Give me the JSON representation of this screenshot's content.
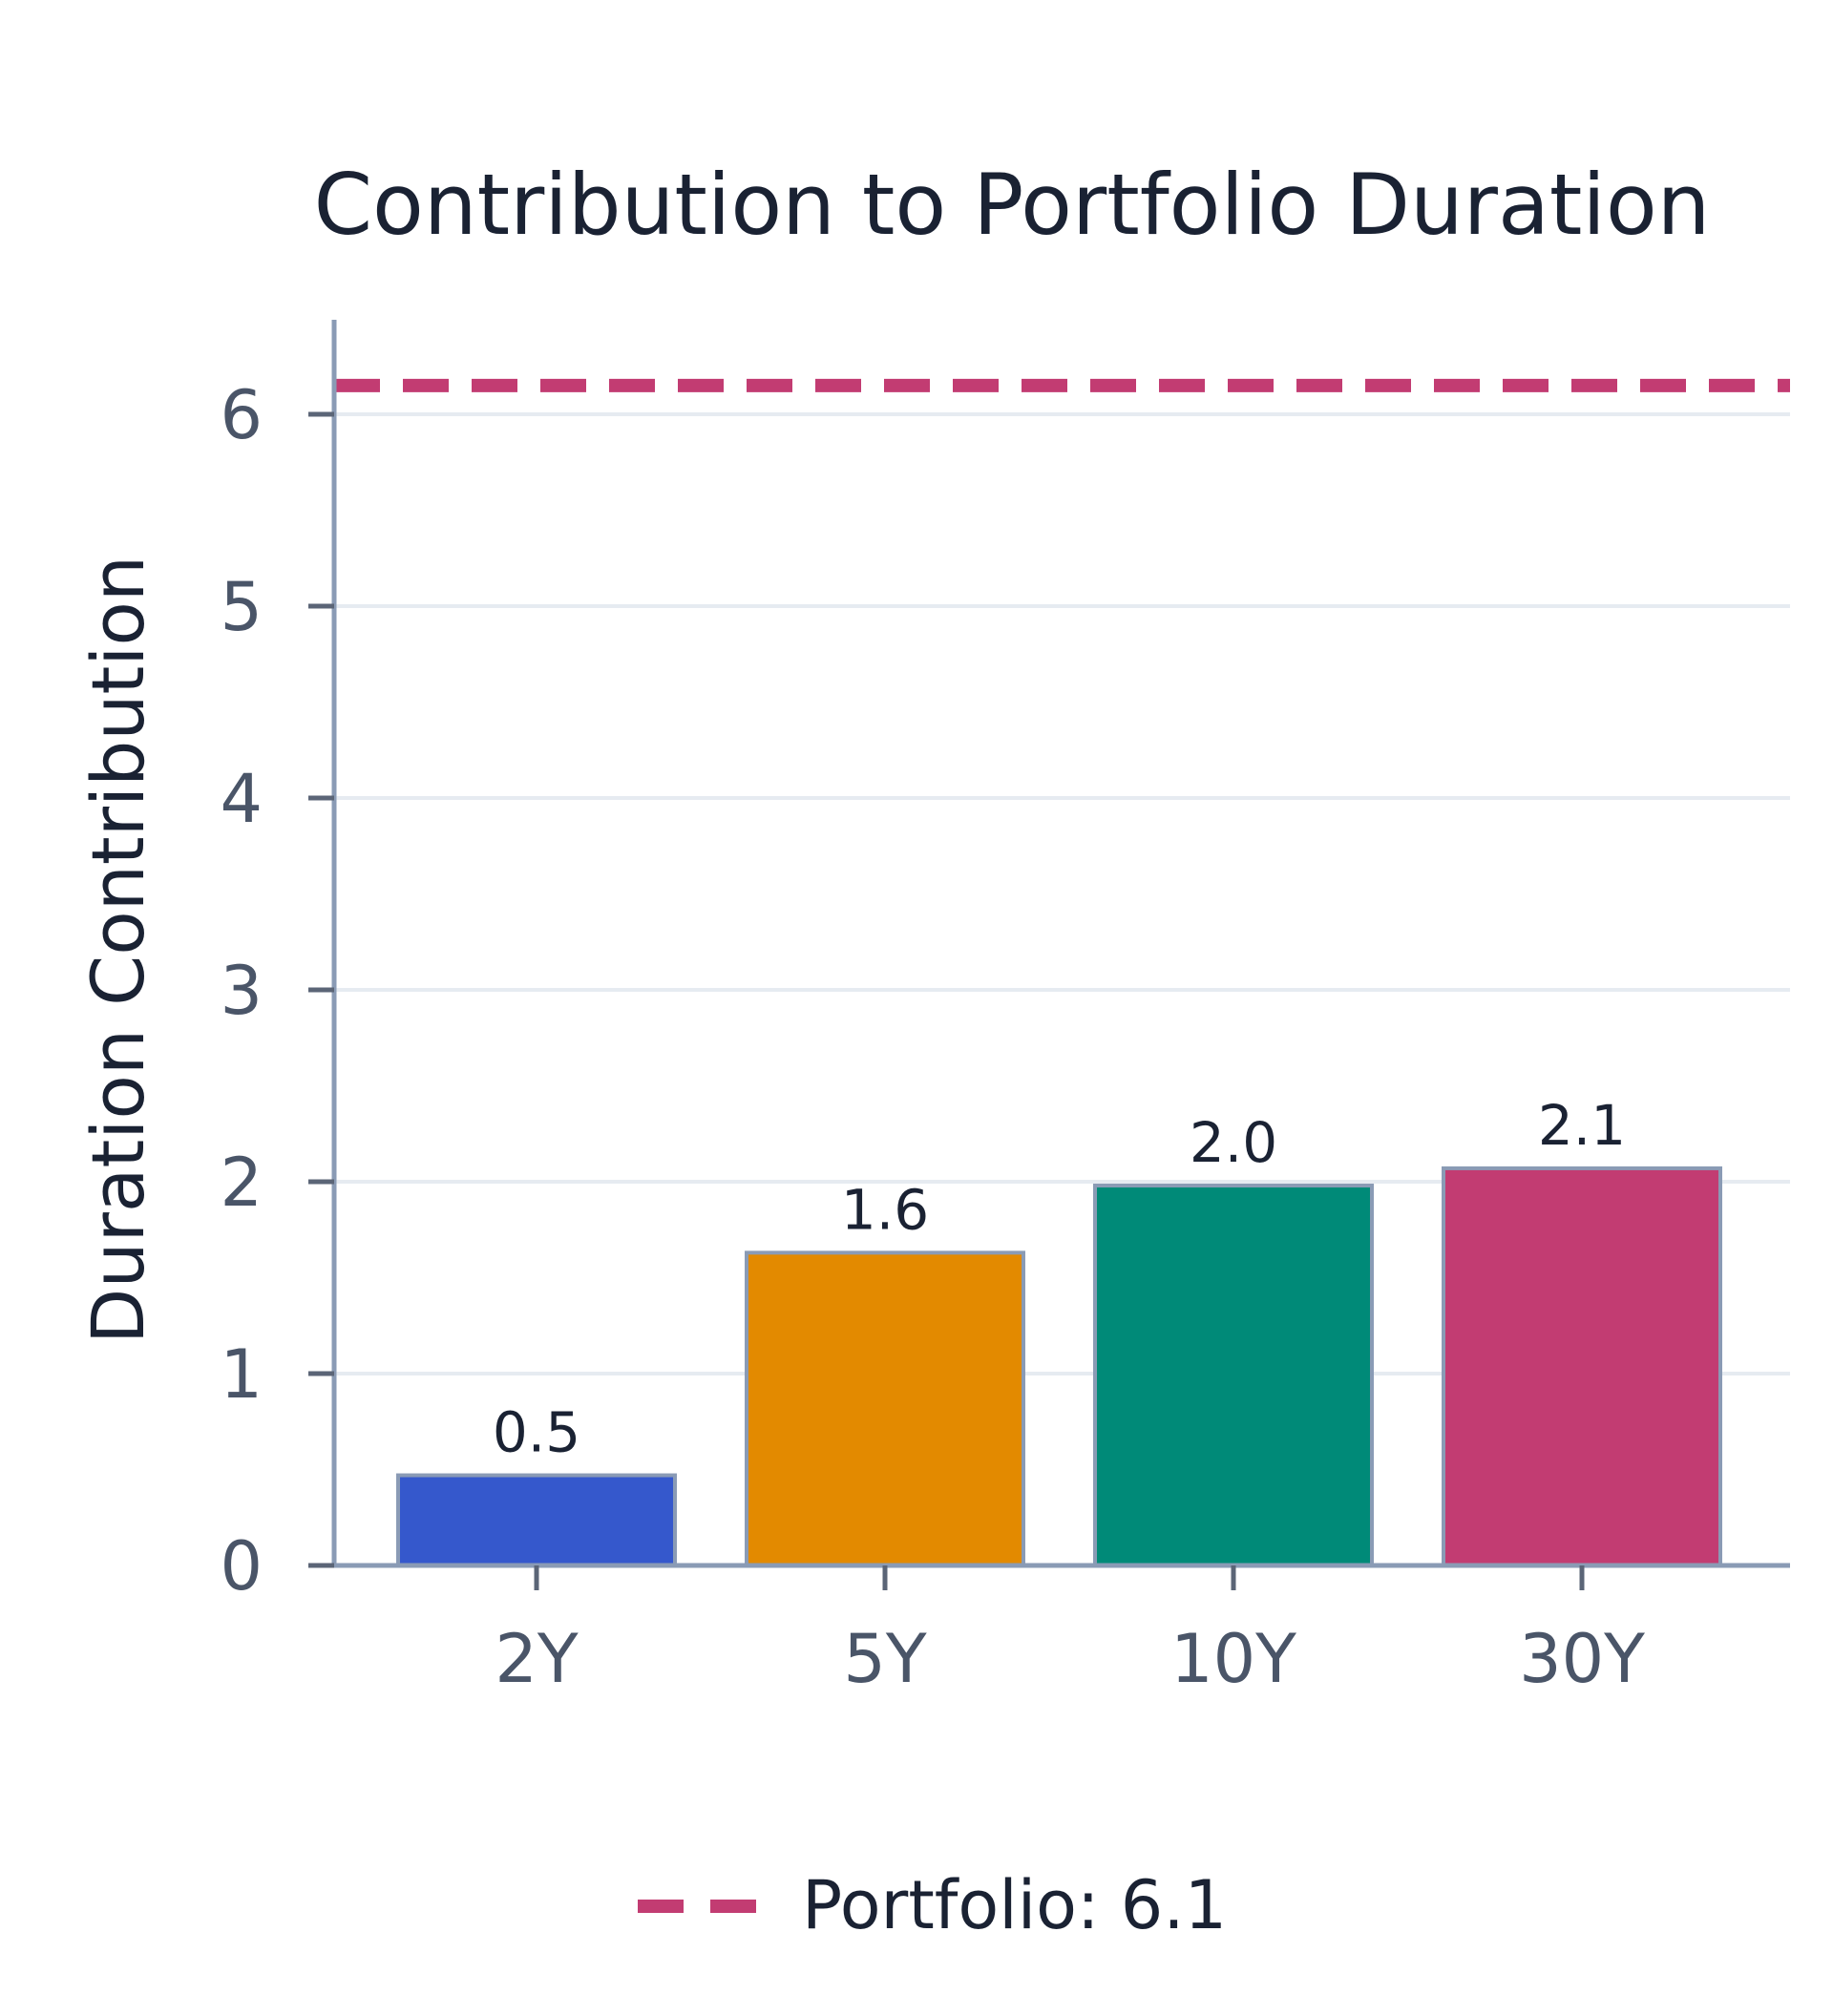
{
  "chart_data": {
    "type": "bar",
    "title": "Contribution to Portfolio Duration",
    "xlabel": "",
    "ylabel": "Duration Contribution",
    "categories": [
      "2Y",
      "5Y",
      "10Y",
      "30Y"
    ],
    "values": [
      0.47,
      1.63,
      1.98,
      2.07
    ],
    "data_labels": [
      "0.5",
      "1.6",
      "2.0",
      "2.1"
    ],
    "bar_colors": [
      "#3558cc",
      "#e38a00",
      "#008a78",
      "#c23c72"
    ],
    "yticks": [
      0,
      1,
      2,
      3,
      4,
      5,
      6
    ],
    "ylim": [
      0,
      6.45
    ],
    "grid": true,
    "reference_line": {
      "label": "Portfolio: 6.1",
      "value": 6.15,
      "color": "#c23c72",
      "style": "dashed"
    },
    "legend": {
      "placement": "bottom-center",
      "entries": [
        {
          "label": "Portfolio: 6.1",
          "color": "#c23c72",
          "style": "dashed"
        }
      ]
    }
  }
}
